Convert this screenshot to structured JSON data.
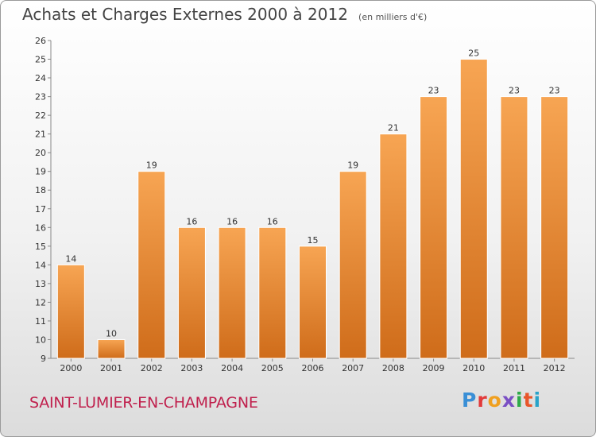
{
  "header": {
    "title": "Achats et Charges Externes 2000 à 2012",
    "subtitle": "(en milliers d'€)"
  },
  "footer": {
    "commune": "SAINT-LUMIER-EN-CHAMPAGNE",
    "logo_letters": [
      "P",
      "r",
      "o",
      "x",
      "i",
      "t",
      "i"
    ],
    "logo_colors": [
      "#3a8fd6",
      "#e23b3b",
      "#f0a020",
      "#7a4fc4",
      "#2faa4a",
      "#e8562a",
      "#29a3c9"
    ]
  },
  "chart_data": {
    "type": "bar",
    "categories": [
      "2000",
      "2001",
      "2002",
      "2003",
      "2004",
      "2005",
      "2006",
      "2007",
      "2008",
      "2009",
      "2010",
      "2011",
      "2012"
    ],
    "values": [
      14,
      10,
      19,
      16,
      16,
      16,
      15,
      19,
      21,
      23,
      25,
      23,
      23
    ],
    "data_labels": [
      "14",
      "10",
      "19",
      "16",
      "16",
      "16",
      "15",
      "19",
      "21",
      "23",
      "25",
      "23",
      "23"
    ],
    "yticks": [
      "9",
      "10",
      "11",
      "12",
      "13",
      "14",
      "15",
      "16",
      "17",
      "18",
      "19",
      "20",
      "21",
      "22",
      "23",
      "24",
      "25",
      "26"
    ],
    "ylim": [
      9,
      26
    ],
    "grid": false,
    "bar_color_top": "#f7a553",
    "bar_color_bottom": "#cf6c1a"
  }
}
